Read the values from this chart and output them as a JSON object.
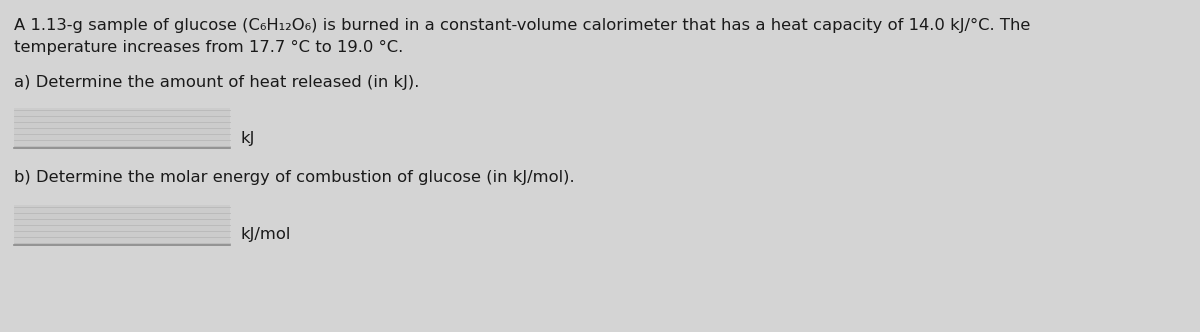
{
  "background_color": "#d4d4d4",
  "panel_color": "#e0e0e0",
  "text_color": "#1a1a1a",
  "line1": "A 1.13-g sample of glucose (C₆H₁₂O₆) is burned in a constant-volume calorimeter that has a heat capacity of 14.0 kJ/°C. The",
  "line2": "temperature increases from 17.7 °C to 19.0 °C.",
  "part_a_label": "a) Determine the amount of heat released (in kJ).",
  "part_a_unit": "kJ",
  "part_b_label": "b) Determine the molar energy of combustion of glucose (in kJ/mol).",
  "part_b_unit": "kJ/mol",
  "fontsize": 11.8,
  "line_color": "#888888",
  "box_color": "#c8c8c8"
}
